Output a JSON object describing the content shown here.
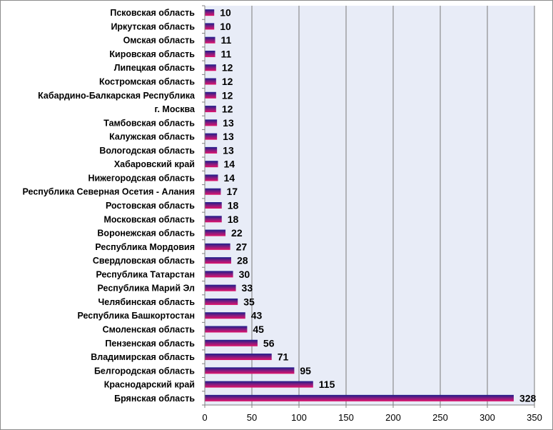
{
  "chart_data": {
    "type": "bar",
    "orientation": "horizontal",
    "categories": [
      "Псковская область",
      "Иркутская область",
      "Омская область",
      "Кировская область",
      "Липецкая область",
      "Костромская область",
      "Кабардино-Балкарская Республика",
      "г. Москва",
      "Тамбовская область",
      "Калужская область",
      "Вологодская область",
      "Хабаровский край",
      "Нижегородская область",
      "Республика Северная Осетия - Алания",
      "Ростовская область",
      "Московская область",
      "Воронежская область",
      "Республика Мордовия",
      "Свердловская область",
      "Республика Татарстан",
      "Республика Марий Эл",
      "Челябинская область",
      "Республика Башкортостан",
      "Смоленская область",
      "Пензенская область",
      "Владимирская область",
      "Белгородская область",
      "Краснодарский край",
      "Брянская область"
    ],
    "values": [
      10,
      10,
      11,
      11,
      12,
      12,
      12,
      12,
      13,
      13,
      13,
      14,
      14,
      17,
      18,
      18,
      22,
      27,
      28,
      30,
      33,
      35,
      43,
      45,
      56,
      71,
      95,
      115,
      328
    ],
    "data_labels": [
      "10",
      "10",
      "11",
      "11",
      "12",
      "12",
      "12",
      "12",
      "13",
      "13",
      "13",
      "14",
      "14",
      "17",
      "18",
      "18",
      "22",
      "27",
      "28",
      "30",
      "33",
      "35",
      "43",
      "45",
      "56",
      "71",
      "95",
      "115",
      "328"
    ],
    "xlim": [
      0,
      350
    ],
    "x_ticks": [
      0,
      50,
      100,
      150,
      200,
      250,
      300,
      350
    ],
    "x_tick_labels": [
      "0",
      "50",
      "100",
      "150",
      "200",
      "250",
      "300",
      "350"
    ],
    "grid": "vertical",
    "legend": "none",
    "title": "",
    "xlabel": "",
    "ylabel": "",
    "colors": {
      "plot_background": "#E8ECF7",
      "bar_gradient": [
        "#1B1F8C",
        "#E0136A"
      ],
      "gridline": "#7A7A7A",
      "axis": "#808080"
    }
  }
}
